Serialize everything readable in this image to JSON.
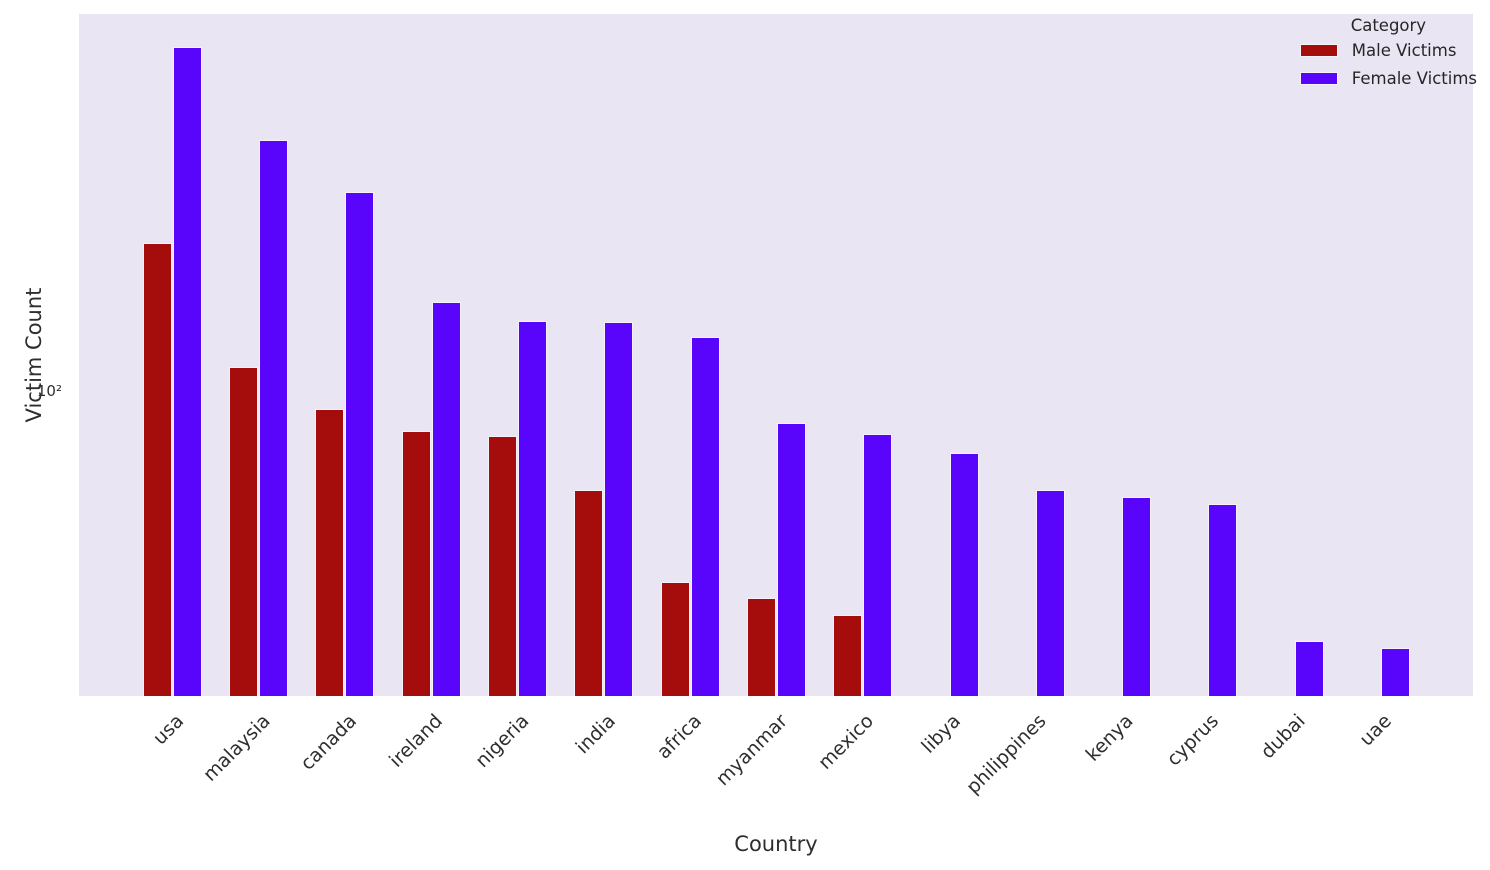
{
  "figure": {
    "background": "#ffffff",
    "plot_background": "#E9E5F2"
  },
  "chart_data": {
    "type": "bar",
    "title": "",
    "xlabel": "Country",
    "ylabel": "Victim Count",
    "yscale": "log",
    "ylim": [
      24,
      584
    ],
    "grid": false,
    "legend_position": "upper right",
    "legend_title": "Category",
    "ytick_labels": [
      "10²"
    ],
    "ytick_values": [
      100
    ],
    "categories": [
      "usa",
      "malaysia",
      "canada",
      "ireland",
      "nigeria",
      "india",
      "africa",
      "myanmar",
      "mexico",
      "libya",
      "philippines",
      "kenya",
      "cyprus",
      "dubai",
      "uae"
    ],
    "series": [
      {
        "name": "Male Victims",
        "color": "#A50D0D",
        "values": [
          200,
          112,
          92,
          83,
          81,
          63,
          41,
          38,
          35,
          null,
          null,
          null,
          null,
          null,
          null
        ]
      },
      {
        "name": "Female Victims",
        "color": "#5A05FB",
        "values": [
          500,
          324,
          254,
          152,
          139,
          138,
          129,
          86,
          82,
          75,
          63,
          61,
          59,
          31,
          30
        ]
      }
    ]
  }
}
